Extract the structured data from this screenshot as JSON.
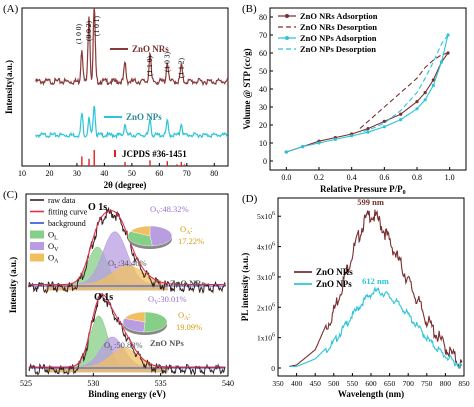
{
  "chart_data": [
    {
      "panel": "(A)",
      "type": "line",
      "xlabel": "2θ (degree)",
      "ylabel": "Intensity(a.u.)",
      "xlim": [
        10,
        85
      ],
      "xticks": [
        "10",
        "20",
        "30",
        "40",
        "50",
        "60",
        "70",
        "80"
      ],
      "series": [
        {
          "name": "ZnO NRs",
          "color": "#8a3a3a",
          "peaks": [
            [
              31.8,
              0.45
            ],
            [
              34.4,
              0.9
            ],
            [
              36.3,
              1.0
            ],
            [
              47.5,
              0.25
            ],
            [
              56.6,
              0.38
            ],
            [
              62.9,
              0.27
            ],
            [
              68,
              0.22
            ]
          ],
          "baseline": 0.18
        },
        {
          "name": "ZnO NPs",
          "color": "#2ec4d8",
          "peaks": [
            [
              31.8,
              0.4
            ],
            [
              34.4,
              0.3
            ],
            [
              36.3,
              0.58
            ],
            [
              47.5,
              0.2
            ],
            [
              56.6,
              0.3
            ],
            [
              62.9,
              0.25
            ],
            [
              68,
              0.22
            ]
          ],
          "baseline": 0.18
        },
        {
          "name": "JCPDS #36-1451",
          "color": "#e02020",
          "sticks": [
            [
              31.8,
              0.6
            ],
            [
              34.4,
              0.45
            ],
            [
              36.3,
              1.0
            ],
            [
              47.5,
              0.25
            ],
            [
              56.6,
              0.35
            ],
            [
              62.9,
              0.3
            ],
            [
              66.4,
              0.1
            ],
            [
              68,
              0.25
            ],
            [
              69.1,
              0.1
            ]
          ]
        }
      ],
      "annotations": [
        {
          "label": "(1 0 0)",
          "x": 31.8
        },
        {
          "label": "(0 0 2)",
          "x": 34.4
        },
        {
          "label": "(1 0 1)",
          "x": 36.3
        },
        {
          "label": "(1 1 0)",
          "x": 56.6
        },
        {
          "label": "(1 0 3)",
          "x": 62.9
        },
        {
          "label": "(1 1 2)",
          "x": 68
        }
      ]
    },
    {
      "panel": "(B)",
      "type": "line",
      "xlabel": "Relative Pressure P/P",
      "xlabel_sub": "0",
      "ylabel": "Volume @ STP (cc/g)",
      "xlim": [
        -0.1,
        1.1
      ],
      "ylim": [
        -5,
        85
      ],
      "xticks": [
        "0.0",
        "0.2",
        "0.4",
        "0.6",
        "0.8",
        "1.0"
      ],
      "yticks": [
        "0",
        "10",
        "20",
        "30",
        "40",
        "50",
        "60",
        "70",
        "80"
      ],
      "series": [
        {
          "name": "ZnO NRs Adsorption",
          "color": "#7a3030",
          "marker": "circle",
          "dash": "",
          "x": [
            0.0,
            0.1,
            0.2,
            0.3,
            0.4,
            0.5,
            0.6,
            0.7,
            0.8,
            0.85,
            0.9,
            0.95,
            0.99
          ],
          "y": [
            5,
            8,
            11,
            13,
            15,
            18,
            22,
            26,
            33,
            38,
            45,
            55,
            60
          ]
        },
        {
          "name": "ZnO NRs Desorption",
          "color": "#7a3030",
          "marker": "none",
          "dash": "5,3",
          "x": [
            0.99,
            0.95,
            0.9,
            0.85,
            0.8,
            0.7,
            0.6,
            0.5,
            0.45
          ],
          "y": [
            60,
            59,
            56,
            52,
            46,
            38,
            30,
            22,
            18
          ]
        },
        {
          "name": "ZnO NPs Adsorption",
          "color": "#2ec4d8",
          "marker": "circle",
          "dash": "",
          "x": [
            0.0,
            0.1,
            0.2,
            0.3,
            0.4,
            0.5,
            0.6,
            0.7,
            0.8,
            0.85,
            0.9,
            0.95,
            0.99
          ],
          "y": [
            5,
            8,
            10,
            12,
            14,
            16,
            19,
            23,
            29,
            34,
            42,
            55,
            70
          ]
        },
        {
          "name": "ZnO NPs Desorption",
          "color": "#2ec4d8",
          "marker": "none",
          "dash": "5,3",
          "x": [
            0.99,
            0.95,
            0.9,
            0.85,
            0.8,
            0.7,
            0.6,
            0.5,
            0.45
          ],
          "y": [
            70,
            65,
            55,
            46,
            38,
            28,
            21,
            17,
            16
          ]
        }
      ]
    },
    {
      "panel": "(C)",
      "type": "line",
      "xlabel": "Binding energy (eV)",
      "ylabel": "Intensity (a.u.)",
      "xlim": [
        525,
        540
      ],
      "xticks": [
        "525",
        "530",
        "535",
        "540"
      ],
      "legend": [
        "raw data",
        "fitting curve",
        "background",
        "O",
        "O",
        "O"
      ],
      "legend_subs": [
        "L",
        "V",
        "A"
      ],
      "legend_colors": [
        "#3a1f1f",
        "#e03050",
        "#3050e0",
        "#86cf86",
        "#b89ee0",
        "#f0c060"
      ],
      "o1s_label": "O 1s",
      "subplots": [
        {
          "name": "ZnO NRs",
          "components": [
            {
              "center": 530.3,
              "sigma": 0.7,
              "amp": 0.34,
              "color": "#86cf86"
            },
            {
              "center": 531.6,
              "sigma": 0.9,
              "amp": 0.48,
              "color": "#b89ee0"
            },
            {
              "center": 532.6,
              "sigma": 1.2,
              "amp": 0.17,
              "color": "#f0c060"
            }
          ],
          "pie": [
            {
              "value": 48.32,
              "color": "#b89ee0"
            },
            {
              "value": 34.46,
              "color": "#86cf86"
            },
            {
              "value": 17.22,
              "color": "#f0c060"
            }
          ],
          "labels": {
            "V": "48.32%",
            "A": "17.22%",
            "L": "34.46%"
          }
        },
        {
          "name": "ZnO NPs",
          "components": [
            {
              "center": 530.4,
              "sigma": 0.65,
              "amp": 0.51,
              "color": "#86cf86"
            },
            {
              "center": 531.4,
              "sigma": 0.85,
              "amp": 0.3,
              "color": "#b89ee0"
            },
            {
              "center": 532.3,
              "sigma": 1.0,
              "amp": 0.19,
              "color": "#f0c060"
            }
          ],
          "pie": [
            {
              "value": 50.88,
              "color": "#86cf86"
            },
            {
              "value": 30.01,
              "color": "#b89ee0"
            },
            {
              "value": 19.09,
              "color": "#f0c060"
            }
          ],
          "labels": {
            "V": "30.01%",
            "A": "19.09%",
            "L": "50.88%"
          }
        }
      ]
    },
    {
      "panel": "(D)",
      "type": "line",
      "xlabel": "Wavelength (nm)",
      "ylabel": "PL intensity (a.u.)",
      "xlim": [
        350,
        850
      ],
      "ylim": [
        0,
        5.6
      ],
      "xticks": [
        "350",
        "400",
        "450",
        "500",
        "550",
        "600",
        "650",
        "700",
        "750",
        "800",
        "850"
      ],
      "yticks": [
        {
          "value": 0,
          "label": "0"
        },
        {
          "value": 1,
          "label": "1x10",
          "exp": "6"
        },
        {
          "value": 2,
          "label": "2x10",
          "exp": "6"
        },
        {
          "value": 3,
          "label": "3x10",
          "exp": "6"
        },
        {
          "value": 4,
          "label": "4x10",
          "exp": "6"
        },
        {
          "value": 5,
          "label": "5x10",
          "exp": "6"
        }
      ],
      "series": [
        {
          "name": "ZnO NRs",
          "color": "#7a3030",
          "x": [
            380,
            400,
            450,
            500,
            550,
            580,
            599,
            620,
            650,
            700,
            750,
            800,
            845
          ],
          "y": [
            0.05,
            0.1,
            0.6,
            2.0,
            3.9,
            4.9,
            5.2,
            5.0,
            4.3,
            3.0,
            1.7,
            0.8,
            0.2
          ]
        },
        {
          "name": "ZnO NPs",
          "color": "#2ec4d8",
          "x": [
            380,
            400,
            450,
            500,
            550,
            590,
            612,
            640,
            680,
            720,
            760,
            800,
            845
          ],
          "y": [
            0.05,
            0.05,
            0.3,
            0.9,
            1.8,
            2.4,
            2.6,
            2.5,
            2.1,
            1.5,
            0.9,
            0.45,
            0.1
          ]
        }
      ],
      "peak_labels": [
        {
          "text": "599 nm",
          "x": 599,
          "series": 0
        },
        {
          "text": "612 nm",
          "x": 612,
          "series": 1
        }
      ]
    }
  ]
}
